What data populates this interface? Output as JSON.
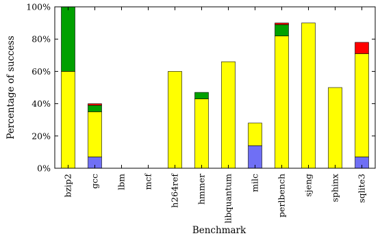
{
  "chart_data": {
    "type": "bar",
    "stacked": true,
    "categories": [
      "bzip2",
      "gcc",
      "lbm",
      "mcf",
      "h264ref",
      "hmmer",
      "libquantum",
      "milc",
      "perlbench",
      "sjeng",
      "sphinx",
      "sqlite3"
    ],
    "series": [
      {
        "color": "#6f6ff5",
        "values": [
          0,
          7,
          0,
          0,
          0,
          0,
          0,
          14,
          0,
          0,
          0,
          7
        ]
      },
      {
        "color": "#ffff00",
        "values": [
          60,
          28,
          0,
          0,
          60,
          43,
          66,
          14,
          82,
          90,
          50,
          64
        ]
      },
      {
        "color": "#00a000",
        "values": [
          40,
          4,
          0,
          0,
          0,
          4,
          0,
          0,
          7,
          0,
          0,
          0
        ]
      },
      {
        "color": "#ff0000",
        "values": [
          0,
          1,
          0,
          0,
          0,
          0,
          0,
          0,
          1,
          0,
          0,
          7
        ]
      }
    ],
    "xlabel": "Benchmark",
    "ylabel": "Percentage of success",
    "ylim": [
      0,
      100
    ],
    "yticks": [
      0,
      20,
      40,
      60,
      80,
      100
    ],
    "ytick_labels": [
      "0%",
      "20%",
      "40%",
      "60%",
      "80%",
      "100%"
    ],
    "grid": false,
    "legend": "none"
  }
}
